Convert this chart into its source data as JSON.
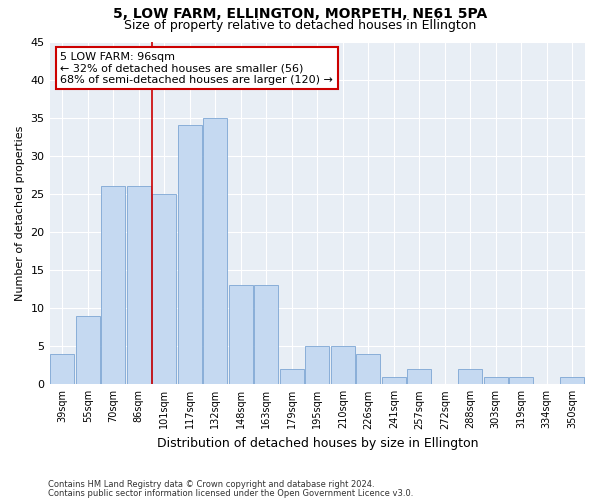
{
  "title": "5, LOW FARM, ELLINGTON, MORPETH, NE61 5PA",
  "subtitle": "Size of property relative to detached houses in Ellington",
  "xlabel": "Distribution of detached houses by size in Ellington",
  "ylabel": "Number of detached properties",
  "categories": [
    "39sqm",
    "55sqm",
    "70sqm",
    "86sqm",
    "101sqm",
    "117sqm",
    "132sqm",
    "148sqm",
    "163sqm",
    "179sqm",
    "195sqm",
    "210sqm",
    "226sqm",
    "241sqm",
    "257sqm",
    "272sqm",
    "288sqm",
    "303sqm",
    "319sqm",
    "334sqm",
    "350sqm"
  ],
  "values": [
    4,
    9,
    26,
    26,
    25,
    34,
    35,
    13,
    13,
    2,
    5,
    5,
    4,
    1,
    2,
    0,
    2,
    1,
    1,
    0,
    1
  ],
  "bar_color": "#c5d9f1",
  "bar_edge_color": "#7da6d4",
  "annotation_title": "5 LOW FARM: 96sqm",
  "annotation_line1": "← 32% of detached houses are smaller (56)",
  "annotation_line2": "68% of semi-detached houses are larger (120) →",
  "annotation_box_color": "#ffffff",
  "annotation_box_edge": "#cc0000",
  "property_line_color": "#cc0000",
  "ylim": [
    0,
    45
  ],
  "yticks": [
    0,
    5,
    10,
    15,
    20,
    25,
    30,
    35,
    40,
    45
  ],
  "background_color": "#e8eef5",
  "footer_line1": "Contains HM Land Registry data © Crown copyright and database right 2024.",
  "footer_line2": "Contains public sector information licensed under the Open Government Licence v3.0.",
  "title_fontsize": 10,
  "subtitle_fontsize": 9,
  "annotation_fontsize": 8,
  "tick_fontsize": 7,
  "ylabel_fontsize": 8,
  "xlabel_fontsize": 9,
  "footer_fontsize": 6
}
